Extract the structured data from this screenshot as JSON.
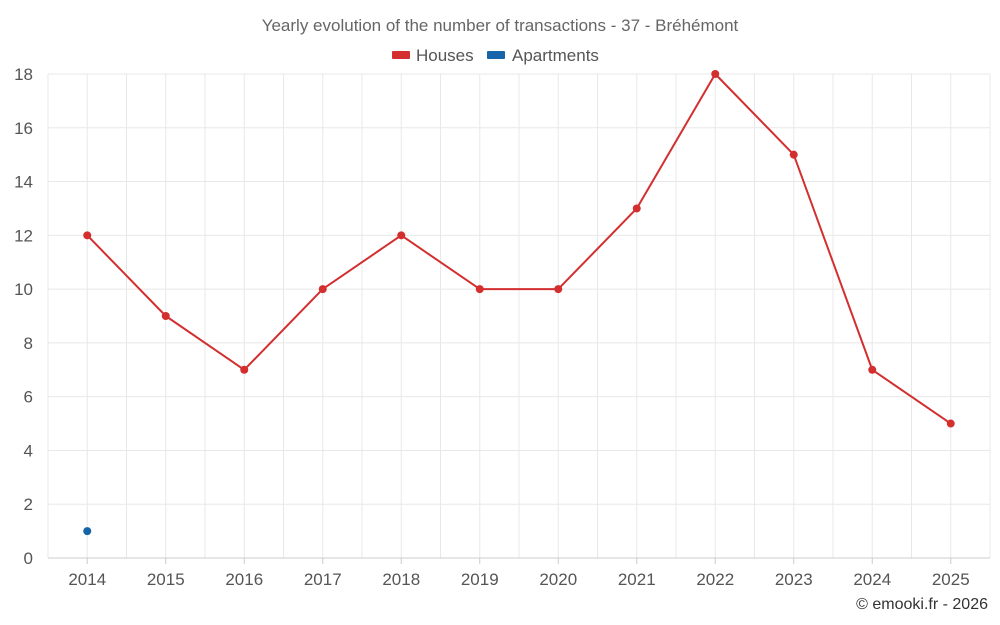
{
  "chart_data": {
    "type": "line",
    "title": "Yearly evolution of the number of transactions - 37 - Bréhémont",
    "categories": [
      "2014",
      "2015",
      "2016",
      "2017",
      "2018",
      "2019",
      "2020",
      "2021",
      "2022",
      "2023",
      "2024",
      "2025"
    ],
    "series": [
      {
        "name": "Houses",
        "color": "#d32f2f",
        "values": [
          12,
          9,
          7,
          10,
          12,
          10,
          10,
          13,
          18,
          15,
          7,
          5
        ]
      },
      {
        "name": "Apartments",
        "color": "#1565a8",
        "values": [
          1,
          null,
          null,
          null,
          null,
          null,
          null,
          null,
          null,
          null,
          null,
          null
        ]
      }
    ],
    "ylim": [
      0,
      18
    ],
    "yticks": [
      0,
      2,
      4,
      6,
      8,
      10,
      12,
      14,
      16,
      18
    ],
    "grid": true,
    "legend_position": "top-center",
    "credit": "© emooki.fr - 2026"
  }
}
